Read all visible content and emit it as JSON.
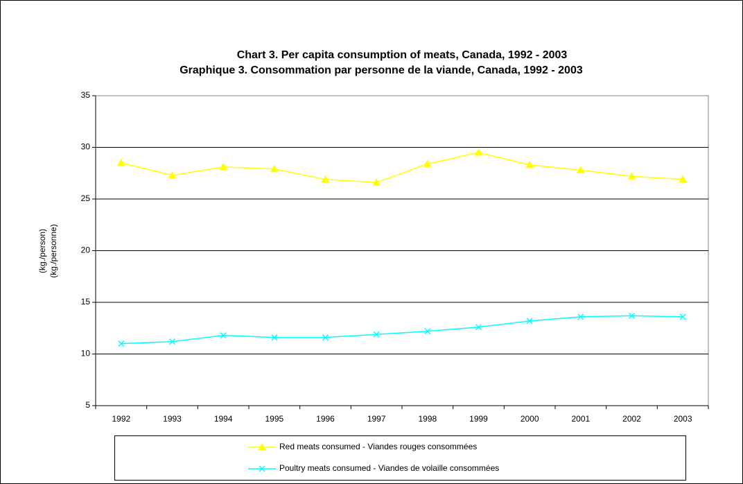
{
  "chart_data": {
    "type": "line",
    "title": [
      "Chart 3. Per capita consumption of meats, Canada, 1992 - 2003",
      "Graphique 3. Consommation par personne de la viande, Canada, 1992 - 2003"
    ],
    "ylabel": [
      "(kg./person)",
      "(kg./personne)"
    ],
    "categories": [
      "1992",
      "1993",
      "1994",
      "1995",
      "1996",
      "1997",
      "1998",
      "1999",
      "2000",
      "2001",
      "2002",
      "2003"
    ],
    "series": [
      {
        "name": "Red meats consumed - Viandes rouges consommées",
        "color": "#ffff00",
        "marker": "triangle",
        "values": [
          28.5,
          27.3,
          28.1,
          27.9,
          26.9,
          26.6,
          28.4,
          29.5,
          28.3,
          27.8,
          27.2,
          26.9
        ]
      },
      {
        "name": "Poultry meats consumed - Viandes de volaille consommées",
        "color": "#00ffff",
        "marker": "x",
        "values": [
          11.0,
          11.2,
          11.8,
          11.6,
          11.6,
          11.9,
          12.2,
          12.6,
          13.2,
          13.6,
          13.7,
          13.6
        ]
      }
    ],
    "ylim": [
      5,
      35
    ],
    "yticks": [
      5,
      10,
      15,
      20,
      25,
      30,
      35
    ],
    "grid": true,
    "legend": "bottom"
  }
}
